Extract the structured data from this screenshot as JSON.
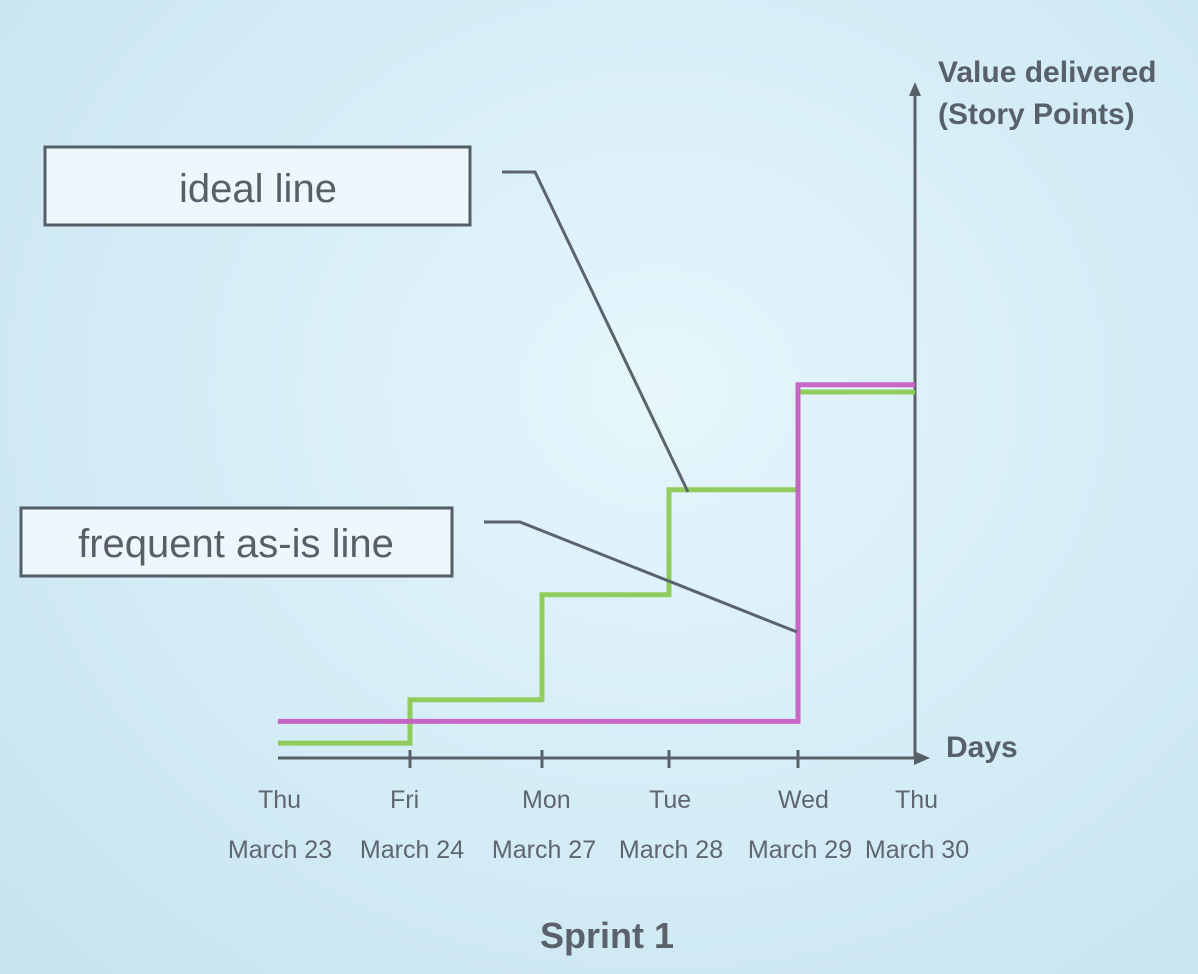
{
  "chart_data": {
    "type": "line",
    "subtype": "step",
    "title": "Sprint 1",
    "ylabel_line1": "Value delivered",
    "ylabel_line2": "(Story Points)",
    "xlabel": "Days",
    "x": [
      {
        "day": "Thu",
        "date": "March 23"
      },
      {
        "day": "Fri",
        "date": "March 24"
      },
      {
        "day": "Mon",
        "date": "March 27"
      },
      {
        "day": "Tue",
        "date": "March 28"
      },
      {
        "day": "Wed",
        "date": "March 29"
      },
      {
        "day": "Thu",
        "date": "March 30"
      }
    ],
    "ylim": [
      0,
      100
    ],
    "grid": false,
    "series": [
      {
        "name": "ideal line",
        "color": "#8cc955",
        "values": [
          3,
          15,
          44,
          73,
          100,
          100
        ]
      },
      {
        "name": "frequent as-is line",
        "color": "#c75fc4",
        "values": [
          9,
          9,
          9,
          9,
          102,
          102
        ]
      }
    ]
  }
}
